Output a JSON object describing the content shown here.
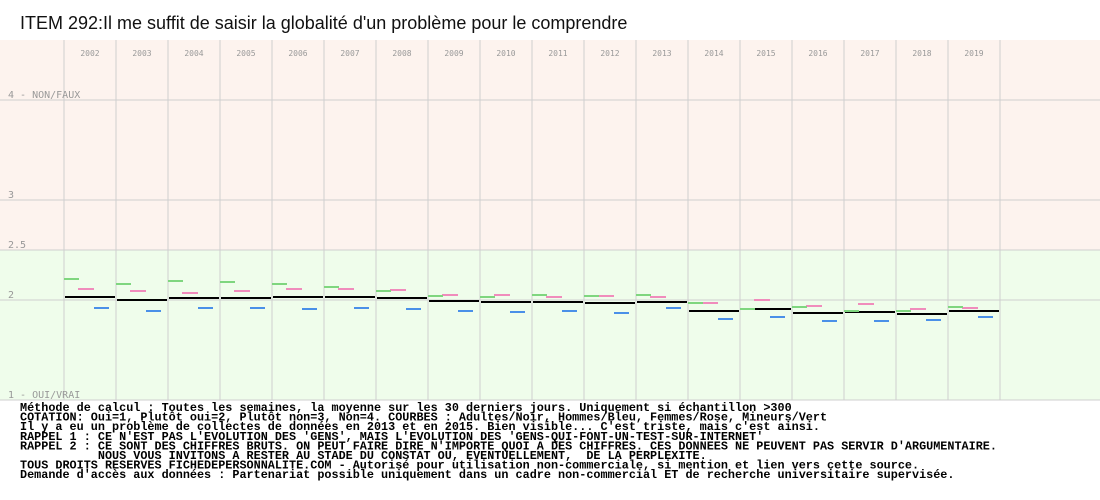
{
  "chart_data": {
    "type": "segments",
    "title": "ITEM 292:Il me suffit de saisir la globalité d'un problème pour le comprendre",
    "categories": [
      "2002",
      "2003",
      "2004",
      "2005",
      "2006",
      "2007",
      "2008",
      "2009",
      "2010",
      "2011",
      "2012",
      "2013",
      "2014",
      "2015",
      "2016",
      "2017",
      "2018",
      "2019"
    ],
    "ylim": [
      1,
      4.6
    ],
    "yticks": [
      {
        "value": 1,
        "label": "1 - OUI/VRAI"
      },
      2,
      2.5,
      3,
      {
        "value": 4,
        "label": "4 - NON/FAUX"
      }
    ],
    "grid": true,
    "series": [
      {
        "color": "#000000",
        "values": [
          2.03,
          2.0,
          2.02,
          2.02,
          2.03,
          2.03,
          2.02,
          1.99,
          1.98,
          1.98,
          1.97,
          1.98,
          1.89,
          1.91,
          1.87,
          1.88,
          1.86,
          1.89
        ]
      },
      {
        "color": "#4a90e8",
        "values": [
          1.92,
          1.89,
          1.92,
          1.92,
          1.91,
          1.92,
          1.91,
          1.89,
          1.88,
          1.89,
          1.87,
          1.92,
          1.81,
          1.83,
          1.79,
          1.79,
          1.8,
          1.83
        ]
      },
      {
        "color": "#f08cbc",
        "values": [
          2.11,
          2.09,
          2.07,
          2.09,
          2.11,
          2.11,
          2.1,
          2.05,
          2.05,
          2.03,
          2.04,
          2.03,
          1.97,
          2.0,
          1.94,
          1.96,
          1.91,
          1.92
        ]
      },
      {
        "color": "#7fd67f",
        "values": [
          2.21,
          2.16,
          2.19,
          2.18,
          2.16,
          2.13,
          2.09,
          2.04,
          2.03,
          2.05,
          2.04,
          2.05,
          1.97,
          1.91,
          1.93,
          1.89,
          1.89,
          1.93
        ]
      }
    ],
    "notes": [
      "Méthode de calcul : Toutes les semaines, la moyenne sur les 30 derniers jours. Uniquement si échantillon >300",
      "COTATION: Oui=1, Plutôt oui=2, Plutôt non=3, Non=4. COURBES : Adultes/Noir, Hommes/Bleu, Femmes/Rose, Mineurs/Vert",
      "Il y a eu un problème de collectes de données en 2013 et en 2015. Bien visible... C'est triste, mais c'est ainsi.",
      "RAPPEL 1 : CE N'EST PAS L'EVOLUTION DES 'GENS', MAIS L'EVOLUTION DES 'GENS-QUI-FONT-UN-TEST-SUR-INTERNET'",
      "RAPPEL 2 : CE SONT DES CHIFFRES BRUTS. ON PEUT FAIRE DIRE N'IMPORTE QUOI A DES CHIFFRES. CES DONNEES NE PEUVENT PAS SERVIR D'ARGUMENTAIRE.",
      "           NOUS VOUS INVITONS A RESTER AU STADE DU CONSTAT OU, EVENTUELLEMENT,  DE LA PERPLEXITE.",
      "TOUS DROITS RESERVES FICHEDEPERSONNALITE.COM - Autorisé pour utilisation non-commerciale, si mention et lien vers cette source.",
      "Demande d'accès aux données : Partenariat possible uniquement dans un cadre non-commercial ET de recherche universitaire supervisée."
    ]
  }
}
